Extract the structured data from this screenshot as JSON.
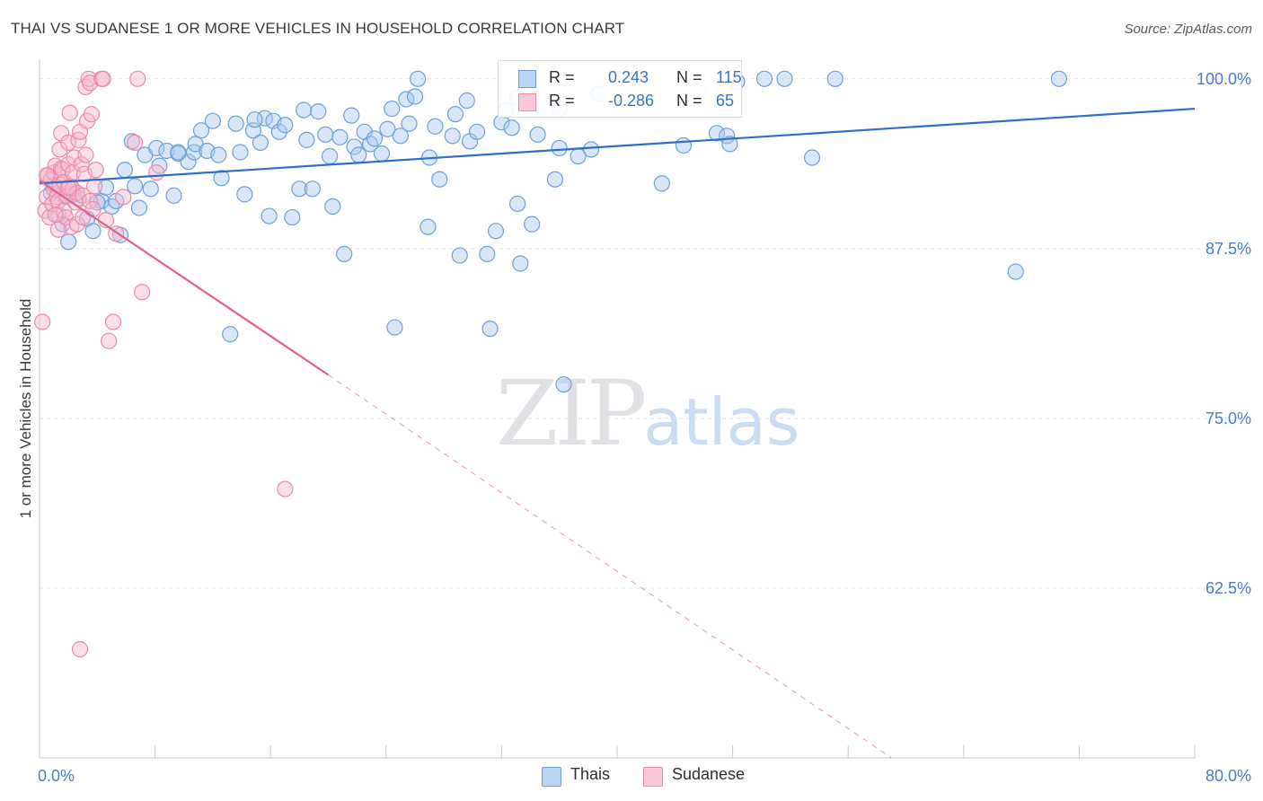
{
  "header": {
    "title": "THAI VS SUDANESE 1 OR MORE VEHICLES IN HOUSEHOLD CORRELATION CHART",
    "source": "Source: ZipAtlas.com"
  },
  "watermark": {
    "zip": "ZIP",
    "atlas": "atlas"
  },
  "legend": {
    "rows": [
      {
        "r_label": "R =",
        "r_value": "0.243",
        "n_label": "N =",
        "n_value": "115"
      },
      {
        "r_label": "R =",
        "r_value": "-0.286",
        "n_label": "N =",
        "n_value": "65"
      }
    ]
  },
  "colors": {
    "thai_fill": "#a9c8ef",
    "thai_stroke": "#6f9fdb",
    "thai_line": "#2f6fc4",
    "sudanese_fill": "#f6b8cb",
    "sudanese_stroke": "#ec8aab",
    "sudanese_line": "#e0608f",
    "tick_label": "#4a7cc6",
    "grid": "#dfe3e8"
  },
  "chart_data": {
    "type": "scatter",
    "title": "THAI VS SUDANESE 1 OR MORE VEHICLES IN HOUSEHOLD CORRELATION CHART",
    "xlabel": "",
    "ylabel": "1 or more Vehicles in Household",
    "xlim": [
      0,
      80
    ],
    "ylim": [
      50,
      102.5
    ],
    "x_tick_labels": [
      "0.0%",
      "80.0%"
    ],
    "y_ticks": [
      62.5,
      75.0,
      87.5,
      100.0
    ],
    "y_tick_labels": [
      "62.5%",
      "75.0%",
      "87.5%",
      "100.0%"
    ],
    "grid": true,
    "legend_position": "top-center and bottom",
    "series": [
      {
        "name": "Thais",
        "r": 0.243,
        "n": 115,
        "trend": {
          "x": [
            0,
            80
          ],
          "y": [
            92.3,
            97.8
          ]
        },
        "points": [
          [
            0.8,
            91.6
          ],
          [
            1.0,
            92.2
          ],
          [
            1.3,
            90.0
          ],
          [
            1.6,
            89.3
          ],
          [
            1.8,
            91.3
          ],
          [
            2.0,
            88.0
          ],
          [
            2.4,
            91.5
          ],
          [
            2.7,
            91.2
          ],
          [
            3.3,
            89.7
          ],
          [
            3.7,
            88.8
          ],
          [
            4.3,
            91.0
          ],
          [
            4.6,
            92.0
          ],
          [
            5.0,
            90.6
          ],
          [
            5.3,
            91.0
          ],
          [
            5.6,
            88.5
          ],
          [
            5.9,
            93.3
          ],
          [
            6.4,
            95.4
          ],
          [
            6.6,
            92.1
          ],
          [
            6.9,
            90.5
          ],
          [
            7.3,
            94.4
          ],
          [
            7.7,
            91.9
          ],
          [
            8.1,
            94.9
          ],
          [
            8.3,
            93.6
          ],
          [
            8.8,
            94.7
          ],
          [
            9.3,
            91.4
          ],
          [
            9.6,
            94.5
          ],
          [
            10.3,
            93.9
          ],
          [
            10.7,
            94.6
          ],
          [
            10.8,
            95.2
          ],
          [
            11.2,
            96.2
          ],
          [
            11.6,
            94.7
          ],
          [
            12.0,
            96.9
          ],
          [
            12.4,
            94.4
          ],
          [
            12.6,
            92.7
          ],
          [
            13.2,
            81.2
          ],
          [
            13.6,
            96.7
          ],
          [
            13.9,
            94.6
          ],
          [
            14.2,
            91.5
          ],
          [
            14.8,
            96.2
          ],
          [
            15.3,
            95.3
          ],
          [
            15.6,
            97.1
          ],
          [
            15.9,
            89.9
          ],
          [
            16.2,
            96.9
          ],
          [
            16.6,
            96.1
          ],
          [
            17.0,
            96.6
          ],
          [
            17.5,
            89.8
          ],
          [
            18.0,
            91.9
          ],
          [
            18.3,
            97.7
          ],
          [
            18.5,
            95.5
          ],
          [
            18.9,
            91.9
          ],
          [
            19.3,
            97.6
          ],
          [
            19.8,
            95.9
          ],
          [
            20.1,
            94.3
          ],
          [
            20.3,
            90.6
          ],
          [
            20.8,
            95.7
          ],
          [
            21.1,
            87.1
          ],
          [
            21.6,
            97.3
          ],
          [
            21.8,
            95.0
          ],
          [
            22.1,
            94.4
          ],
          [
            22.5,
            96.1
          ],
          [
            22.9,
            95.2
          ],
          [
            23.2,
            95.6
          ],
          [
            23.7,
            94.5
          ],
          [
            24.1,
            96.3
          ],
          [
            24.4,
            97.8
          ],
          [
            24.6,
            81.7
          ],
          [
            25.0,
            95.8
          ],
          [
            25.4,
            98.5
          ],
          [
            25.6,
            96.7
          ],
          [
            26.0,
            98.7
          ],
          [
            26.2,
            100.0
          ],
          [
            26.9,
            89.1
          ],
          [
            27.0,
            94.2
          ],
          [
            27.4,
            96.5
          ],
          [
            27.7,
            92.6
          ],
          [
            28.6,
            95.8
          ],
          [
            28.8,
            97.4
          ],
          [
            29.1,
            87.0
          ],
          [
            29.6,
            98.4
          ],
          [
            29.8,
            95.4
          ],
          [
            30.3,
            96.1
          ],
          [
            31.0,
            87.1
          ],
          [
            31.2,
            81.6
          ],
          [
            31.6,
            88.8
          ],
          [
            32.0,
            96.8
          ],
          [
            32.3,
            97.7
          ],
          [
            32.7,
            96.4
          ],
          [
            33.1,
            90.8
          ],
          [
            33.3,
            86.4
          ],
          [
            34.1,
            89.3
          ],
          [
            34.5,
            95.9
          ],
          [
            35.7,
            92.6
          ],
          [
            36.0,
            94.9
          ],
          [
            36.3,
            77.5
          ],
          [
            37.3,
            94.3
          ],
          [
            38.2,
            94.8
          ],
          [
            40.0,
            100.0
          ],
          [
            43.1,
            92.3
          ],
          [
            44.6,
            95.1
          ],
          [
            46.9,
            96.0
          ],
          [
            47.6,
            95.8
          ],
          [
            47.8,
            95.2
          ],
          [
            48.3,
            99.8
          ],
          [
            50.2,
            100.0
          ],
          [
            51.6,
            100.0
          ],
          [
            53.5,
            94.2
          ],
          [
            55.1,
            100.0
          ],
          [
            67.6,
            85.8
          ],
          [
            70.6,
            100.0
          ],
          [
            36.0,
            97.8
          ],
          [
            38.7,
            98.9
          ],
          [
            33.1,
            98.6
          ],
          [
            14.9,
            97.0
          ],
          [
            9.6,
            94.6
          ],
          [
            4.0,
            90.9
          ]
        ]
      },
      {
        "name": "Sudanese",
        "r": -0.286,
        "n": 65,
        "trend": {
          "x": [
            0,
            20
          ],
          "y": [
            92.5,
            78.2
          ]
        },
        "trend_dashed": {
          "x": [
            20,
            59
          ],
          "y": [
            78.2,
            50.0
          ]
        },
        "points": [
          [
            0.2,
            82.1
          ],
          [
            0.4,
            90.3
          ],
          [
            0.5,
            91.3
          ],
          [
            0.6,
            92.9
          ],
          [
            0.7,
            89.8
          ],
          [
            0.8,
            92.6
          ],
          [
            0.9,
            90.8
          ],
          [
            1.0,
            91.9
          ],
          [
            1.0,
            93.1
          ],
          [
            1.1,
            93.6
          ],
          [
            1.2,
            91.3
          ],
          [
            1.3,
            91.0
          ],
          [
            1.4,
            92.2
          ],
          [
            1.4,
            94.8
          ],
          [
            1.5,
            93.4
          ],
          [
            1.5,
            96.0
          ],
          [
            1.6,
            93.3
          ],
          [
            1.7,
            90.3
          ],
          [
            1.7,
            92.4
          ],
          [
            1.8,
            89.8
          ],
          [
            1.9,
            91.4
          ],
          [
            2.0,
            95.3
          ],
          [
            2.0,
            93.7
          ],
          [
            2.1,
            92.1
          ],
          [
            2.1,
            97.5
          ],
          [
            2.2,
            89.1
          ],
          [
            2.3,
            91.9
          ],
          [
            2.3,
            93.1
          ],
          [
            2.4,
            94.2
          ],
          [
            2.5,
            90.9
          ],
          [
            2.6,
            91.6
          ],
          [
            2.6,
            89.3
          ],
          [
            2.7,
            95.5
          ],
          [
            2.8,
            96.1
          ],
          [
            2.8,
            58.0
          ],
          [
            2.9,
            93.7
          ],
          [
            3.0,
            91.4
          ],
          [
            3.0,
            89.8
          ],
          [
            3.1,
            93.0
          ],
          [
            3.2,
            94.4
          ],
          [
            3.2,
            99.4
          ],
          [
            3.3,
            96.9
          ],
          [
            3.4,
            100.0
          ],
          [
            3.5,
            99.7
          ],
          [
            3.5,
            91.0
          ],
          [
            3.6,
            97.4
          ],
          [
            3.7,
            90.4
          ],
          [
            3.8,
            92.1
          ],
          [
            3.9,
            93.3
          ],
          [
            4.3,
            100.0
          ],
          [
            4.4,
            100.0
          ],
          [
            4.6,
            89.6
          ],
          [
            4.8,
            80.7
          ],
          [
            5.1,
            82.1
          ],
          [
            5.3,
            88.6
          ],
          [
            5.8,
            91.3
          ],
          [
            6.6,
            95.3
          ],
          [
            6.8,
            100.0
          ],
          [
            7.1,
            84.3
          ],
          [
            8.1,
            93.1
          ],
          [
            17.0,
            69.8
          ],
          [
            0.5,
            92.9
          ],
          [
            1.1,
            90.0
          ],
          [
            2.0,
            92.0
          ],
          [
            1.3,
            88.9
          ]
        ]
      }
    ]
  },
  "bottom_legend": {
    "items": [
      {
        "label": "Thais"
      },
      {
        "label": "Sudanese"
      }
    ]
  }
}
